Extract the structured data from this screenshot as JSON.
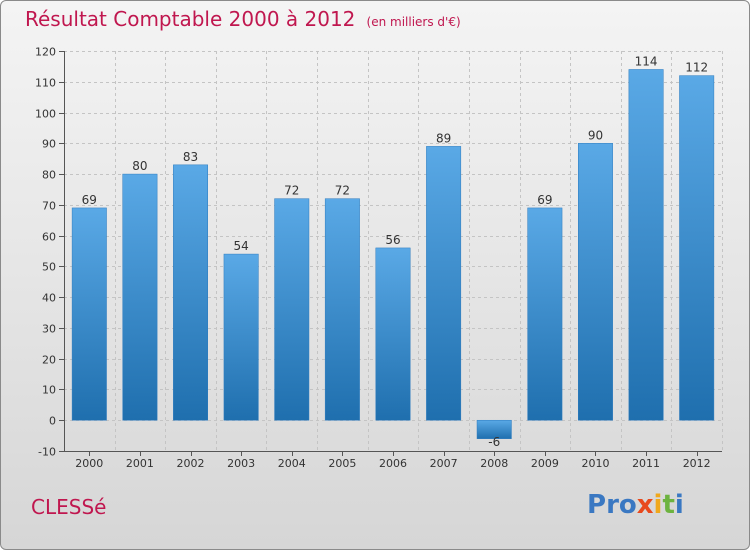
{
  "title": {
    "main": "Résultat Comptable 2000 à 2012",
    "sub": "(en milliers d'€)"
  },
  "commune": "CLESSé",
  "logo": {
    "letters": [
      "P",
      "r",
      "o",
      "x",
      "i",
      "t",
      "i"
    ],
    "colors": [
      "#3a78c2",
      "#3a78c2",
      "#3a78c2",
      "#e8491d",
      "#f0a81c",
      "#6db33f",
      "#3a78c2"
    ]
  },
  "colors": {
    "bar_light": "#5aa9e6",
    "bar_dark": "#1f6fae",
    "title": "#c0174f"
  },
  "chart_data": {
    "type": "bar",
    "categories": [
      "2000",
      "2001",
      "2002",
      "2003",
      "2004",
      "2005",
      "2006",
      "2007",
      "2008",
      "2009",
      "2010",
      "2011",
      "2012"
    ],
    "values": [
      69,
      80,
      83,
      54,
      72,
      72,
      56,
      89,
      -6,
      69,
      90,
      114,
      112
    ],
    "ylim": [
      -10,
      120
    ],
    "yticks": [
      -10,
      0,
      10,
      20,
      30,
      40,
      50,
      60,
      70,
      80,
      90,
      100,
      110,
      120
    ],
    "grid": true,
    "title": "Résultat Comptable 2000 à 2012",
    "xlabel": "",
    "ylabel": ""
  }
}
